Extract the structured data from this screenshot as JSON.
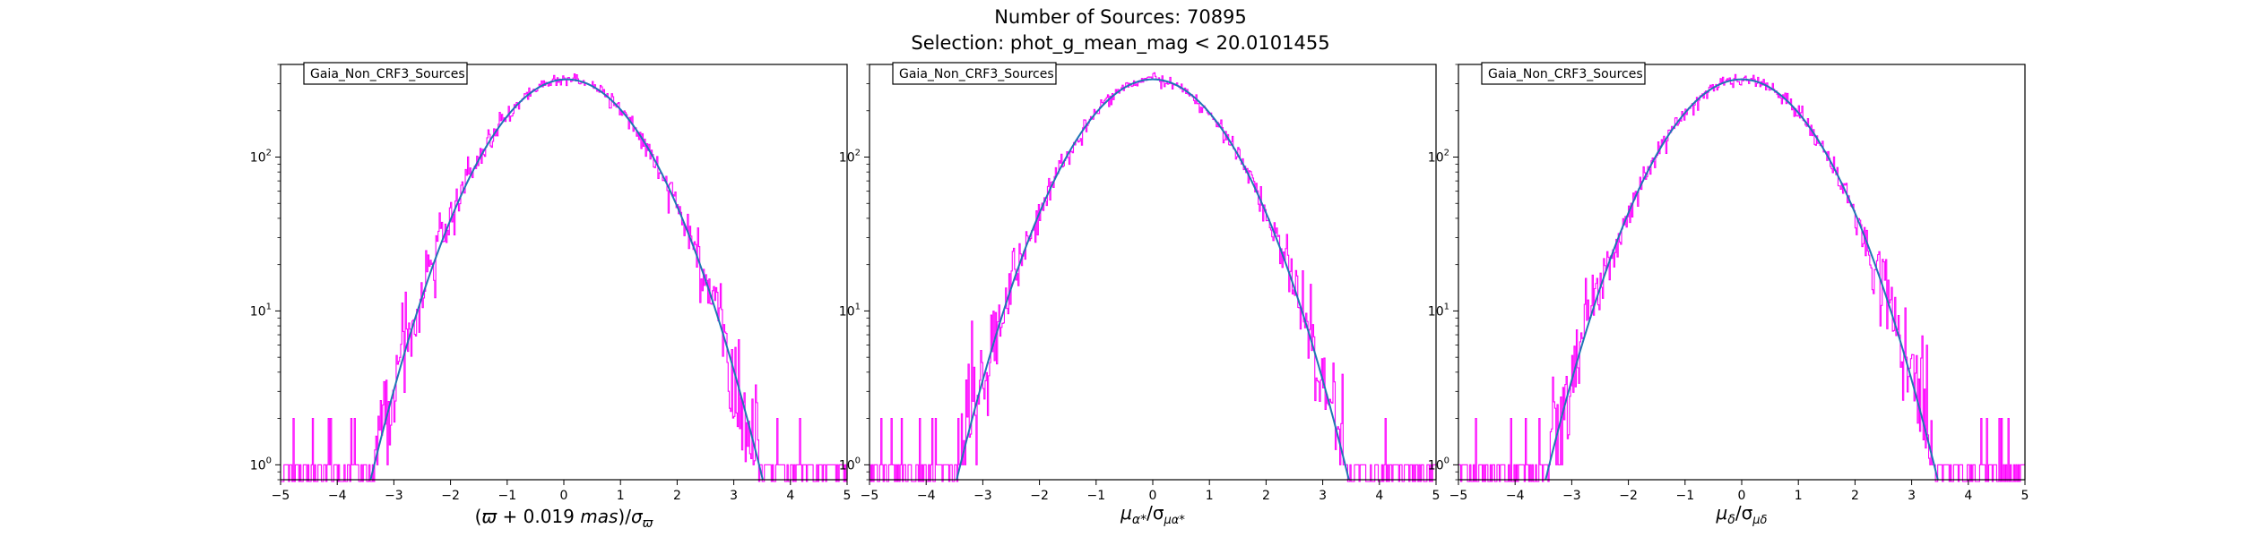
{
  "figure": {
    "title_line1": "Number of Sources: 70895",
    "title_line2": "Selection: phot_g_mean_mag < 20.0101455"
  },
  "colors": {
    "histogram": "#ff00ff",
    "fit": "#1f77b4",
    "frame": "#000000"
  },
  "chart_data": [
    {
      "type": "line",
      "title": "",
      "legend": {
        "entry": "Gaia_Non_CRF3_Sources",
        "placement": "top-left"
      },
      "xlabel_parts": [
        "(",
        "ϖ",
        " + 0.019 ",
        "mas",
        ")/",
        "σ",
        "ϖ"
      ],
      "ylabel": "",
      "xlim": [
        -5,
        5
      ],
      "ylim": [
        0.8,
        400
      ],
      "yscale": "log",
      "xticks": [
        "−5",
        "−4",
        "−3",
        "−2",
        "−1",
        "0",
        "1",
        "2",
        "3",
        "4",
        "5"
      ],
      "yticks": [
        {
          "base": "10",
          "exp": "0",
          "value": 1
        },
        {
          "base": "10",
          "exp": "1",
          "value": 10
        },
        {
          "base": "10",
          "exp": "2",
          "value": 100
        }
      ],
      "grid": false,
      "series": [
        {
          "kind": "gaussian_fit",
          "amplitude": 320,
          "mean": 0.05,
          "sigma": 1.0
        },
        {
          "kind": "histogram",
          "bin_width": 0.02,
          "x_range": [
            -5,
            5
          ]
        }
      ]
    },
    {
      "type": "line",
      "title": "",
      "legend": {
        "entry": "Gaia_Non_CRF3_Sources",
        "placement": "top-left"
      },
      "xlabel_parts": [
        "μ",
        "α*",
        "/σ",
        "μα*"
      ],
      "ylabel": "",
      "xlim": [
        -5,
        5
      ],
      "ylim": [
        0.8,
        400
      ],
      "yscale": "log",
      "xticks": [
        "−5",
        "−4",
        "−3",
        "−2",
        "−1",
        "0",
        "1",
        "2",
        "3",
        "4",
        "5"
      ],
      "yticks": [
        {
          "base": "10",
          "exp": "0",
          "value": 1
        },
        {
          "base": "10",
          "exp": "1",
          "value": 10
        },
        {
          "base": "10",
          "exp": "2",
          "value": 100
        }
      ],
      "grid": false,
      "series": [
        {
          "kind": "gaussian_fit",
          "amplitude": 320,
          "mean": 0.0,
          "sigma": 1.0
        },
        {
          "kind": "histogram",
          "bin_width": 0.02,
          "x_range": [
            -5,
            5
          ]
        }
      ]
    },
    {
      "type": "line",
      "title": "",
      "legend": {
        "entry": "Gaia_Non_CRF3_Sources",
        "placement": "top-left"
      },
      "xlabel_parts": [
        "μ",
        "δ",
        "/σ",
        "μδ"
      ],
      "ylabel": "",
      "xlim": [
        -5,
        5
      ],
      "ylim": [
        0.8,
        400
      ],
      "yscale": "log",
      "xticks": [
        "−5",
        "−4",
        "−3",
        "−2",
        "−1",
        "0",
        "1",
        "2",
        "3",
        "4",
        "5"
      ],
      "yticks": [
        {
          "base": "10",
          "exp": "0",
          "value": 1
        },
        {
          "base": "10",
          "exp": "1",
          "value": 10
        },
        {
          "base": "10",
          "exp": "2",
          "value": 100
        }
      ],
      "grid": false,
      "series": [
        {
          "kind": "gaussian_fit",
          "amplitude": 320,
          "mean": 0.0,
          "sigma": 1.0
        },
        {
          "kind": "histogram",
          "bin_width": 0.02,
          "x_range": [
            -5,
            5
          ]
        }
      ]
    }
  ]
}
